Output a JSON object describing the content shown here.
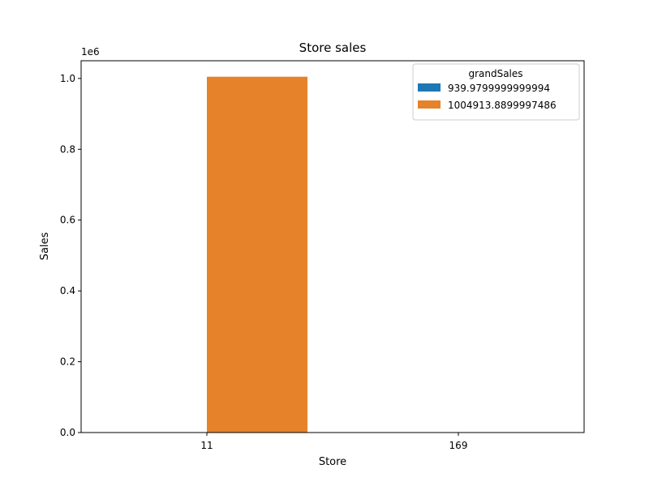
{
  "chart_data": {
    "type": "bar",
    "title": "Store sales",
    "xlabel": "Store",
    "ylabel": "Sales",
    "y_offset_text": "1e6",
    "categories": [
      "11",
      "169"
    ],
    "ylim": [
      0,
      1.05
    ],
    "y_ticks": [
      "0.0",
      "0.2",
      "0.4",
      "0.6",
      "0.8",
      "1.0"
    ],
    "legend": {
      "title": "grandSales",
      "placement": "top-right"
    },
    "series": [
      {
        "name": "939.9799999999994",
        "color": "#1f77b4",
        "values": [
          0,
          0.00094
        ]
      },
      {
        "name": "1004913.8899997486",
        "color": "#e6822a",
        "values": [
          1.0049,
          0
        ]
      }
    ],
    "grid": false
  }
}
